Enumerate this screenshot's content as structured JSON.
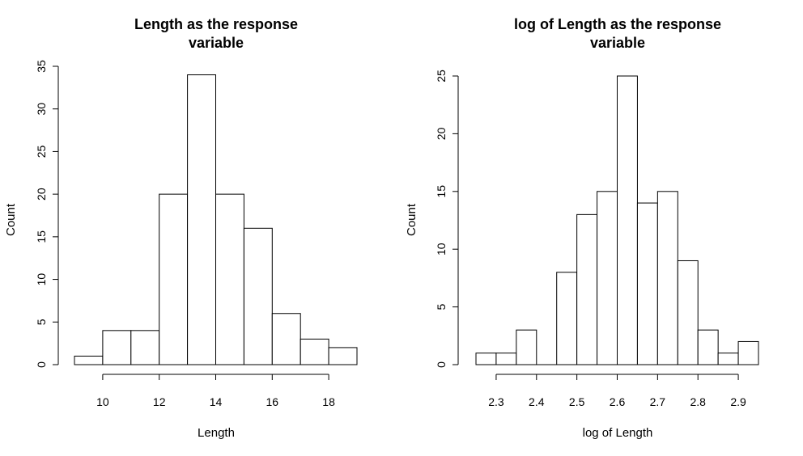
{
  "chart_data": [
    {
      "type": "bar",
      "title_lines": [
        "Length as the response",
        "variable"
      ],
      "xlabel": "Length",
      "ylabel": "Count",
      "xlim": [
        9,
        19
      ],
      "ylim": [
        0,
        35
      ],
      "bin_edges": [
        9,
        10,
        11,
        12,
        13,
        14,
        15,
        16,
        17,
        18,
        19
      ],
      "values": [
        1,
        4,
        4,
        20,
        34,
        20,
        16,
        6,
        3,
        2
      ],
      "x_ticks": [
        "10",
        "12",
        "14",
        "16",
        "18"
      ],
      "y_ticks": [
        "0",
        "5",
        "10",
        "15",
        "20",
        "25",
        "30",
        "35"
      ]
    },
    {
      "type": "bar",
      "title_lines": [
        "log of Length as the response",
        "variable"
      ],
      "xlabel": "log of Length",
      "ylabel": "Count",
      "xlim": [
        2.25,
        2.95
      ],
      "ylim": [
        0,
        25
      ],
      "bin_edges": [
        2.25,
        2.3,
        2.35,
        2.4,
        2.45,
        2.5,
        2.55,
        2.6,
        2.65,
        2.7,
        2.75,
        2.8,
        2.85,
        2.9,
        2.95
      ],
      "values": [
        1,
        1,
        3,
        0,
        8,
        13,
        15,
        25,
        14,
        15,
        9,
        3,
        1,
        2
      ],
      "x_ticks": [
        "2.3",
        "2.4",
        "2.5",
        "2.6",
        "2.7",
        "2.8",
        "2.9"
      ],
      "y_ticks": [
        "0",
        "5",
        "10",
        "15",
        "20",
        "25"
      ]
    }
  ]
}
